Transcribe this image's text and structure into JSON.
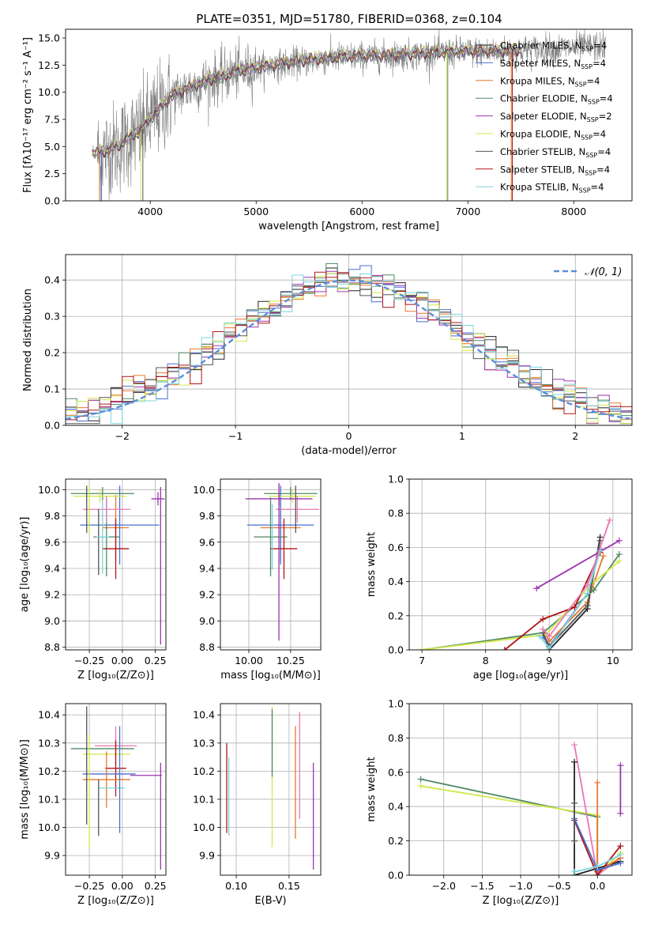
{
  "figure": {
    "title": "PLATE=0351, MJD=51780, FIBERID=0368, z=0.104"
  },
  "models": [
    {
      "label": "Chabrier MILES, N",
      "sub": "SSP",
      "suffix": "=4",
      "color": "#222222"
    },
    {
      "label": "Salpeter MILES, N",
      "sub": "SSP",
      "suffix": "=4",
      "color": "#4a6fd1"
    },
    {
      "label": "Kroupa MILES, N",
      "sub": "SSP",
      "suffix": "=4",
      "color": "#e8772e"
    },
    {
      "label": "Chabrier ELODIE, N",
      "sub": "SSP",
      "suffix": "=4",
      "color": "#4f8a63"
    },
    {
      "label": "Salpeter ELODIE, N",
      "sub": "SSP",
      "suffix": "=2",
      "color": "#9d35b0"
    },
    {
      "label": "Kroupa ELODIE, N",
      "sub": "SSP",
      "suffix": "=4",
      "color": "#d2e84a"
    },
    {
      "label": "Chabrier STELIB, N",
      "sub": "SSP",
      "suffix": "=4",
      "color": "#555555"
    },
    {
      "label": "Salpeter STELIB, N",
      "sub": "SSP",
      "suffix": "=4",
      "color": "#b01515"
    },
    {
      "label": "Kroupa STELIB, N",
      "sub": "SSP",
      "suffix": "=4",
      "color": "#7ed4dd"
    }
  ],
  "extra_colors": {
    "pink": "#e878b6",
    "dashed_gauss": "#5b8fd9",
    "data_gray": "#808080"
  },
  "chart_data": [
    {
      "id": "spectrum",
      "type": "line",
      "xlabel": "wavelength [Angstrom, rest frame]",
      "ylabel": "Flux [fλ10⁻¹⁷ erg cm⁻² s⁻¹ A⁻¹]",
      "xlim": [
        3200,
        8550
      ],
      "ylim": [
        0,
        15.8
      ],
      "xticks": [
        4000,
        5000,
        6000,
        7000,
        8000
      ],
      "yticks": [
        0.0,
        2.5,
        5.0,
        7.5,
        10.0,
        12.5,
        15.0
      ],
      "xticklabels": [
        "4000",
        "5000",
        "6000",
        "7000",
        "8000"
      ],
      "yticklabels": [
        "0.0",
        "2.5",
        "5.0",
        "7.5",
        "10.0",
        "12.5",
        "15.0"
      ],
      "continuum": {
        "x": [
          3500,
          3600,
          3700,
          3800,
          3900,
          4000,
          4200,
          4400,
          4600,
          4800,
          5000,
          5200,
          5500,
          5800,
          6100,
          6400,
          6700,
          7000,
          7300,
          7600,
          7800,
          8000,
          8200
        ],
        "y": [
          4.3,
          4.6,
          5.0,
          5.8,
          6.3,
          7.5,
          9.6,
          10.5,
          11.2,
          11.8,
          12.2,
          12.5,
          12.9,
          13.2,
          13.3,
          13.4,
          13.6,
          13.7,
          13.7,
          13.9,
          14.0,
          14.1,
          14.2
        ]
      },
      "model_range": [
        3450,
        7500
      ],
      "data_range": [
        3500,
        8300
      ],
      "legend_position": "upper right"
    },
    {
      "id": "residuals",
      "type": "histogram",
      "xlabel": "(data-model)/error",
      "ylabel": "Normed distribution",
      "xlim": [
        -2.5,
        2.5
      ],
      "ylim": [
        0,
        0.47
      ],
      "xticks": [
        -2,
        -1,
        0,
        1,
        2
      ],
      "xticklabels": [
        "−2",
        "−1",
        "0",
        "1",
        "2"
      ],
      "yticks": [
        0.0,
        0.1,
        0.2,
        0.3,
        0.4
      ],
      "yticklabels": [
        "0.0",
        "0.1",
        "0.2",
        "0.3",
        "0.4"
      ],
      "bin_width": 0.1,
      "legend": "𝒩(0, 1)",
      "legend_position": "upper right"
    },
    {
      "id": "age_vs_Z",
      "type": "errorbar",
      "xlabel": "Z [log₁₀(Z/Z⊙)]",
      "ylabel": "age  [log₁₀(age/yr)]",
      "xlim": [
        -0.43,
        0.33
      ],
      "ylim": [
        8.78,
        10.08
      ],
      "xticks": [
        -0.25,
        0.0,
        0.25
      ],
      "xticklabels": [
        "−0.25",
        "0.00",
        "0.25"
      ],
      "yticks": [
        8.8,
        9.0,
        9.2,
        9.4,
        9.6,
        9.8,
        10.0
      ],
      "yticklabels": [
        "8.8",
        "9.0",
        "9.2",
        "9.4",
        "9.6",
        "9.8",
        "10.0"
      ],
      "points": [
        {
          "x": -0.05,
          "y": 9.71,
          "xerr": 0.1,
          "yerr": 0.25,
          "color": "#e8772e"
        },
        {
          "x": -0.02,
          "y": 9.73,
          "xerr": 0.3,
          "yerr": 0.3,
          "color": "#4a6fd1"
        },
        {
          "x": -0.12,
          "y": 9.64,
          "xerr": 0.1,
          "yerr": 0.3,
          "color": "#4f8a63"
        },
        {
          "x": -0.05,
          "y": 9.55,
          "xerr": 0.1,
          "yerr": 0.23,
          "color": "#b01515"
        },
        {
          "x": -0.15,
          "y": 9.97,
          "xerr": 0.24,
          "yerr": 0.05,
          "color": "#4f8a63"
        },
        {
          "x": -0.17,
          "y": 9.95,
          "xerr": 0.2,
          "yerr": 0.05,
          "color": "#d2e84a"
        },
        {
          "x": -0.12,
          "y": 9.85,
          "xerr": 0.18,
          "yerr": 0.1,
          "color": "#e878b6"
        },
        {
          "x": 0.27,
          "y": 9.93,
          "xerr": 0.05,
          "yerr": 0.05,
          "color": "#9d35b0"
        },
        {
          "x": 0.29,
          "y": 9.42,
          "xerr": 0.0,
          "yerr": 0.6,
          "color": "#9d35b0"
        },
        {
          "x": -0.27,
          "y": 9.85,
          "xerr": 0.0,
          "yerr": 0.18,
          "color": "#555555"
        },
        {
          "x": -0.25,
          "y": 9.85,
          "xerr": 0.0,
          "yerr": 0.18,
          "color": "#d2e84a"
        },
        {
          "x": -0.18,
          "y": 9.6,
          "xerr": 0.0,
          "yerr": 0.25,
          "color": "#555555"
        },
        {
          "x": -0.15,
          "y": 9.64,
          "xerr": 0.05,
          "yerr": 0.28,
          "color": "#7ed4dd"
        }
      ]
    },
    {
      "id": "age_vs_mass",
      "type": "errorbar",
      "xlabel": "mass [log₁₀(M/M⊙)]",
      "ylabel": "",
      "xlim": [
        9.83,
        10.43
      ],
      "ylim": [
        8.78,
        10.08
      ],
      "xticks": [
        10.0,
        10.25
      ],
      "xticklabels": [
        "10.00",
        "10.25"
      ],
      "yticks": [
        8.8,
        9.0,
        9.2,
        9.4,
        9.6,
        9.8,
        10.0
      ],
      "yticklabels": [
        "8.8",
        "9.0",
        "9.2",
        "9.4",
        "9.6",
        "9.8",
        "10.0"
      ],
      "points": [
        {
          "x": 10.19,
          "y": 9.71,
          "xerr": 0.12,
          "yerr": 0.25,
          "color": "#e8772e"
        },
        {
          "x": 10.19,
          "y": 9.73,
          "xerr": 0.2,
          "yerr": 0.3,
          "color": "#4a6fd1"
        },
        {
          "x": 10.13,
          "y": 9.64,
          "xerr": 0.1,
          "yerr": 0.3,
          "color": "#4f8a63"
        },
        {
          "x": 10.21,
          "y": 9.55,
          "xerr": 0.08,
          "yerr": 0.23,
          "color": "#b01515"
        },
        {
          "x": 10.25,
          "y": 9.97,
          "xerr": 0.16,
          "yerr": 0.05,
          "color": "#4f8a63"
        },
        {
          "x": 10.26,
          "y": 9.95,
          "xerr": 0.14,
          "yerr": 0.05,
          "color": "#d2e84a"
        },
        {
          "x": 10.29,
          "y": 9.85,
          "xerr": 0.13,
          "yerr": 0.1,
          "color": "#e878b6"
        },
        {
          "x": 10.18,
          "y": 9.93,
          "xerr": 0.2,
          "yerr": 0.05,
          "color": "#9d35b0"
        },
        {
          "x": 10.18,
          "y": 9.45,
          "xerr": 0.0,
          "yerr": 0.6,
          "color": "#9d35b0"
        },
        {
          "x": 10.28,
          "y": 9.85,
          "xerr": 0.0,
          "yerr": 0.18,
          "color": "#555555"
        },
        {
          "x": 10.14,
          "y": 9.64,
          "xerr": 0.0,
          "yerr": 0.25,
          "color": "#7ed4dd"
        }
      ]
    },
    {
      "id": "weight_vs_age",
      "type": "line",
      "xlabel": "age  [log₁₀(age/yr)]",
      "ylabel": "mass weight",
      "xlim": [
        6.8,
        10.3
      ],
      "ylim": [
        0,
        1
      ],
      "xticks": [
        7,
        8,
        9,
        10
      ],
      "xticklabels": [
        "7",
        "8",
        "9",
        "10"
      ],
      "yticks": [
        0.0,
        0.2,
        0.4,
        0.6,
        0.8,
        1.0
      ],
      "yticklabels": [
        "0.0",
        "0.2",
        "0.4",
        "0.6",
        "0.8",
        "1.0"
      ],
      "series": [
        {
          "color": "#222222",
          "x": [
            8.9,
            9.0,
            9.6,
            9.8
          ],
          "y": [
            0.1,
            0.0,
            0.24,
            0.66
          ]
        },
        {
          "color": "#4a6fd1",
          "x": [
            8.9,
            9.0,
            9.6,
            9.8
          ],
          "y": [
            0.08,
            0.02,
            0.33,
            0.59
          ]
        },
        {
          "color": "#e8772e",
          "x": [
            8.9,
            9.0,
            9.6,
            9.85
          ],
          "y": [
            0.12,
            0.05,
            0.28,
            0.55
          ]
        },
        {
          "color": "#4f8a63",
          "x": [
            7.0,
            8.9,
            9.7,
            10.1
          ],
          "y": [
            0.0,
            0.1,
            0.35,
            0.56
          ]
        },
        {
          "color": "#9d35b0",
          "x": [
            8.8,
            10.1
          ],
          "y": [
            0.36,
            0.64
          ]
        },
        {
          "color": "#d2e84a",
          "x": [
            7.0,
            8.95,
            9.65,
            10.1
          ],
          "y": [
            0.0,
            0.09,
            0.38,
            0.52
          ]
        },
        {
          "color": "#555555",
          "x": [
            8.9,
            9.0,
            9.6,
            9.8
          ],
          "y": [
            0.1,
            0.02,
            0.26,
            0.64
          ]
        },
        {
          "color": "#b01515",
          "x": [
            8.3,
            8.9,
            9.4,
            9.8
          ],
          "y": [
            0.0,
            0.18,
            0.25,
            0.57
          ]
        },
        {
          "color": "#7ed4dd",
          "x": [
            8.85,
            9.0,
            9.6,
            9.8
          ],
          "y": [
            0.08,
            0.01,
            0.33,
            0.58
          ]
        },
        {
          "color": "#e878b6",
          "x": [
            8.9,
            9.0,
            9.6,
            9.95
          ],
          "y": [
            0.12,
            0.08,
            0.38,
            0.76
          ]
        }
      ]
    },
    {
      "id": "mass_vs_Z",
      "type": "errorbar",
      "xlabel": "Z [log₁₀(Z/Z⊙)]",
      "ylabel": "mass [log₁₀(M/M⊙)]",
      "xlim": [
        -0.43,
        0.33
      ],
      "ylim": [
        9.83,
        10.44
      ],
      "xticks": [
        -0.25,
        0.0,
        0.25
      ],
      "xticklabels": [
        "−0.25",
        "0.00",
        "0.25"
      ],
      "yticks": [
        9.9,
        10.0,
        10.1,
        10.2,
        10.3,
        10.4
      ],
      "yticklabels": [
        "9.9",
        "10.0",
        "10.1",
        "10.2",
        "10.3",
        "10.4"
      ],
      "points": [
        {
          "x": -0.15,
          "y": 10.28,
          "xerr": 0.24,
          "yerr": 0.0,
          "color": "#4f8a63"
        },
        {
          "x": -0.05,
          "y": 10.29,
          "xerr": 0.16,
          "yerr": 0.07,
          "color": "#e878b6"
        },
        {
          "x": -0.12,
          "y": 10.26,
          "xerr": 0.18,
          "yerr": 0.0,
          "color": "#d2e84a"
        },
        {
          "x": -0.05,
          "y": 10.21,
          "xerr": 0.08,
          "yerr": 0.1,
          "color": "#b01515"
        },
        {
          "x": -0.1,
          "y": 10.19,
          "xerr": 0.2,
          "yerr": 0.0,
          "color": "#4a6fd1"
        },
        {
          "x": -0.12,
          "y": 10.17,
          "xerr": 0.18,
          "yerr": 0.1,
          "color": "#e8772e"
        },
        {
          "x": -0.08,
          "y": 10.14,
          "xerr": 0.1,
          "yerr": 0.0,
          "color": "#7ed4dd"
        },
        {
          "x": 0.18,
          "y": 10.185,
          "xerr": 0.12,
          "yerr": 0.0,
          "color": "#9d35b0"
        },
        {
          "x": 0.29,
          "y": 10.04,
          "xerr": 0.0,
          "yerr": 0.19,
          "color": "#9d35b0"
        },
        {
          "x": -0.27,
          "y": 10.22,
          "xerr": 0.0,
          "yerr": 0.21,
          "color": "#555555"
        },
        {
          "x": -0.25,
          "y": 10.13,
          "xerr": 0.0,
          "yerr": 0.2,
          "color": "#d2e84a"
        },
        {
          "x": -0.18,
          "y": 10.07,
          "xerr": 0.0,
          "yerr": 0.1,
          "color": "#555555"
        },
        {
          "x": -0.02,
          "y": 10.17,
          "xerr": 0.0,
          "yerr": 0.19,
          "color": "#4a6fd1"
        }
      ]
    },
    {
      "id": "mass_vs_ebv",
      "type": "errorbar",
      "xlabel": "E(B-V)",
      "ylabel": "",
      "xlim": [
        0.085,
        0.18
      ],
      "ylim": [
        9.83,
        10.44
      ],
      "xticks": [
        0.1,
        0.15
      ],
      "xticklabels": [
        "0.10",
        "0.15"
      ],
      "yticks": [
        9.9,
        10.0,
        10.1,
        10.2,
        10.3,
        10.4
      ],
      "yticklabels": [
        "9.9",
        "10.0",
        "10.1",
        "10.2",
        "10.3",
        "10.4"
      ],
      "points": [
        {
          "x": 0.091,
          "y": 10.14,
          "xerr": 0,
          "yerr": 0.16,
          "color": "#b01515"
        },
        {
          "x": 0.093,
          "y": 10.11,
          "xerr": 0,
          "yerr": 0.14,
          "color": "#7ed4dd"
        },
        {
          "x": 0.134,
          "y": 10.18,
          "xerr": 0,
          "yerr": 0.25,
          "color": "#d2e84a"
        },
        {
          "x": 0.134,
          "y": 10.3,
          "xerr": 0,
          "yerr": 0.12,
          "color": "#4f8a63"
        },
        {
          "x": 0.156,
          "y": 10.16,
          "xerr": 0,
          "yerr": 0.2,
          "color": "#e8772e"
        },
        {
          "x": 0.16,
          "y": 10.22,
          "xerr": 0,
          "yerr": 0.19,
          "color": "#e878b6"
        },
        {
          "x": 0.173,
          "y": 10.04,
          "xerr": 0,
          "yerr": 0.19,
          "color": "#9d35b0"
        }
      ]
    },
    {
      "id": "weight_vs_Z",
      "type": "line",
      "xlabel": "Z [log₁₀(Z/Z⊙)]",
      "ylabel": "mass weight",
      "xlim": [
        -2.45,
        0.45
      ],
      "ylim": [
        0,
        1
      ],
      "xticks": [
        -2.0,
        -1.5,
        -1.0,
        -0.5,
        0.0
      ],
      "xticklabels": [
        "−2.0",
        "−1.5",
        "−1.0",
        "−0.5",
        "0.0"
      ],
      "yticks": [
        0.0,
        0.2,
        0.4,
        0.6,
        0.8,
        1.0
      ],
      "yticklabels": [
        "0.0",
        "0.2",
        "0.4",
        "0.6",
        "0.8",
        "1.0"
      ],
      "series": [
        {
          "color": "#4f8a63",
          "x": [
            -2.3,
            0.0,
            0.0,
            0.3
          ],
          "y": [
            0.56,
            0.34,
            0.02,
            0.1
          ]
        },
        {
          "color": "#d2e84a",
          "x": [
            -2.3,
            0.0,
            0.0,
            0.3
          ],
          "y": [
            0.52,
            0.35,
            0.0,
            0.13
          ]
        },
        {
          "color": "#e878b6",
          "x": [
            -0.3,
            0.0,
            0.3
          ],
          "y": [
            0.76,
            0.0,
            0.1
          ]
        },
        {
          "color": "#222222",
          "x": [
            -0.3,
            -0.3,
            0.3
          ],
          "y": [
            0.66,
            0.0,
            0.08
          ]
        },
        {
          "color": "#e8772e",
          "x": [
            0.0,
            0.0,
            0.3
          ],
          "y": [
            0.54,
            0.02,
            0.1
          ]
        },
        {
          "color": "#b01515",
          "x": [
            -0.3,
            0.0,
            0.3
          ],
          "y": [
            0.32,
            0.0,
            0.17
          ]
        },
        {
          "color": "#4a6fd1",
          "x": [
            -0.3,
            0.0,
            0.3
          ],
          "y": [
            0.33,
            0.03,
            0.07
          ]
        },
        {
          "color": "#7ed4dd",
          "x": [
            -0.3,
            0.0,
            0.3
          ],
          "y": [
            0.02,
            0.05,
            0.12
          ]
        },
        {
          "color": "#9d35b0",
          "x": [
            0.3,
            0.3
          ],
          "y": [
            0.36,
            0.64
          ]
        },
        {
          "color": "#555555",
          "x": [
            -0.3,
            -0.3
          ],
          "y": [
            0.2,
            0.42
          ]
        }
      ]
    }
  ]
}
